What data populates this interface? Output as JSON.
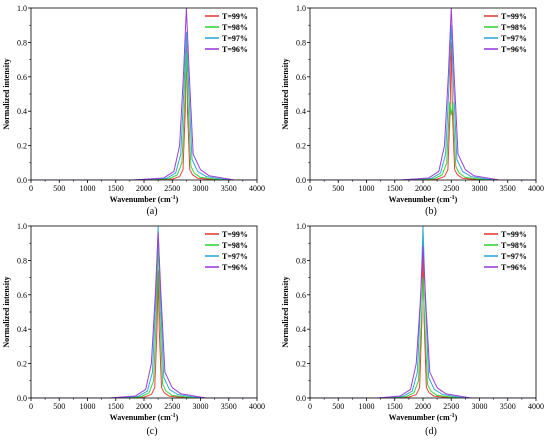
{
  "chart_data": [
    {
      "type": "line",
      "panel_label": "(a)",
      "peak_x": 2750,
      "xlabel": "Wavenumber (cm",
      "xlabel_sup": "-1",
      "xlabel_tail": ")",
      "ylabel": "Normalized intensity",
      "xlim": [
        0,
        4000
      ],
      "ylim": [
        0,
        1.0
      ],
      "xticks": [
        0,
        500,
        1000,
        1500,
        2000,
        2500,
        3000,
        3500,
        4000
      ],
      "yticks": [
        "0.0",
        "0.2",
        "0.4",
        "0.6",
        "0.8",
        "1.0"
      ],
      "legend_position": "top-right",
      "grid": false,
      "series": [
        {
          "name": "T=99%",
          "color": "#e8403a",
          "x": [
            0,
            2000,
            2500,
            2630,
            2690,
            2730,
            2750,
            2770,
            2810,
            2860,
            2950,
            3300,
            4000
          ],
          "y": [
            0,
            0,
            0.005,
            0.02,
            0.06,
            0.4,
            0.78,
            0.4,
            0.06,
            0.03,
            0.01,
            0,
            0
          ]
        },
        {
          "name": "T=98%",
          "color": "#3cd43c",
          "x": [
            0,
            2000,
            2450,
            2590,
            2670,
            2720,
            2750,
            2780,
            2830,
            2890,
            3000,
            3400,
            4000
          ],
          "y": [
            0,
            0,
            0.008,
            0.03,
            0.1,
            0.45,
            0.74,
            0.45,
            0.08,
            0.04,
            0.015,
            0,
            0
          ]
        },
        {
          "name": "T=97%",
          "color": "#32a8d8",
          "x": [
            0,
            1800,
            2400,
            2560,
            2650,
            2710,
            2750,
            2790,
            2850,
            2950,
            3100,
            3500,
            4000
          ],
          "y": [
            0,
            0,
            0.01,
            0.04,
            0.15,
            0.55,
            0.86,
            0.55,
            0.12,
            0.05,
            0.02,
            0,
            0
          ]
        },
        {
          "name": "T=96%",
          "color": "#9b3fd8",
          "x": [
            0,
            1800,
            2350,
            2530,
            2630,
            2700,
            2750,
            2800,
            2870,
            3000,
            3150,
            3600,
            4000
          ],
          "y": [
            0,
            0,
            0.012,
            0.05,
            0.2,
            0.62,
            1.0,
            0.62,
            0.15,
            0.06,
            0.025,
            0,
            0
          ]
        }
      ]
    },
    {
      "type": "line",
      "panel_label": "(b)",
      "peak_x": 2500,
      "xlabel": "Wavenumber (cm",
      "xlabel_sup": "-1",
      "xlabel_tail": ")",
      "ylabel": "Normalized intensity",
      "xlim": [
        0,
        4000
      ],
      "ylim": [
        0,
        1.0
      ],
      "xticks": [
        0,
        500,
        1000,
        1500,
        2000,
        2500,
        3000,
        3500,
        4000
      ],
      "yticks": [
        "0.0",
        "0.2",
        "0.4",
        "0.6",
        "0.8",
        "1.0"
      ],
      "legend_position": "top-right",
      "grid": false,
      "series": [
        {
          "name": "T=99%",
          "color": "#e8403a",
          "x": [
            0,
            1800,
            2250,
            2380,
            2440,
            2480,
            2500,
            2520,
            2560,
            2610,
            2700,
            3050,
            4000
          ],
          "y": [
            0,
            0,
            0.005,
            0.02,
            0.06,
            0.4,
            0.8,
            0.4,
            0.06,
            0.03,
            0.01,
            0,
            0
          ]
        },
        {
          "name": "T=98%",
          "color": "#3cd43c",
          "x": [
            0,
            1800,
            2200,
            2340,
            2420,
            2470,
            2500,
            2530,
            2580,
            2640,
            2750,
            3150,
            4000
          ],
          "y": [
            0,
            0,
            0.008,
            0.03,
            0.1,
            0.45,
            0.38,
            0.45,
            0.08,
            0.04,
            0.015,
            0,
            0
          ]
        },
        {
          "name": "T=97%",
          "color": "#32a8d8",
          "x": [
            0,
            1600,
            2150,
            2310,
            2400,
            2460,
            2500,
            2540,
            2600,
            2700,
            2850,
            3250,
            4000
          ],
          "y": [
            0,
            0,
            0.01,
            0.04,
            0.15,
            0.55,
            0.9,
            0.55,
            0.12,
            0.05,
            0.02,
            0,
            0
          ]
        },
        {
          "name": "T=96%",
          "color": "#9b3fd8",
          "x": [
            0,
            1600,
            2100,
            2280,
            2380,
            2450,
            2500,
            2550,
            2620,
            2750,
            2900,
            3350,
            4000
          ],
          "y": [
            0,
            0,
            0.012,
            0.05,
            0.2,
            0.62,
            1.0,
            0.62,
            0.15,
            0.06,
            0.025,
            0,
            0
          ]
        }
      ]
    },
    {
      "type": "line",
      "panel_label": "(c)",
      "peak_x": 2250,
      "xlabel": "Wavenumber (cm",
      "xlabel_sup": "-1",
      "xlabel_tail": ")",
      "ylabel": "Normalized intensity",
      "xlim": [
        0,
        4000
      ],
      "ylim": [
        0,
        1.0
      ],
      "xticks": [
        0,
        500,
        1000,
        1500,
        2000,
        2500,
        3000,
        3500,
        4000
      ],
      "yticks": [
        "0.0",
        "0.2",
        "0.4",
        "0.6",
        "0.8",
        "1.0"
      ],
      "legend_position": "top-right",
      "grid": false,
      "series": [
        {
          "name": "T=99%",
          "color": "#e8403a",
          "x": [
            0,
            1600,
            2000,
            2130,
            2190,
            2230,
            2250,
            2270,
            2310,
            2360,
            2450,
            2800,
            4000
          ],
          "y": [
            0,
            0,
            0.005,
            0.02,
            0.06,
            0.4,
            0.74,
            0.4,
            0.06,
            0.03,
            0.01,
            0,
            0
          ]
        },
        {
          "name": "T=98%",
          "color": "#3cd43c",
          "x": [
            0,
            1600,
            1950,
            2090,
            2170,
            2220,
            2250,
            2280,
            2330,
            2390,
            2500,
            2900,
            4000
          ],
          "y": [
            0,
            0,
            0.008,
            0.03,
            0.1,
            0.5,
            0.93,
            0.5,
            0.08,
            0.04,
            0.015,
            0,
            0
          ]
        },
        {
          "name": "T=97%",
          "color": "#32a8d8",
          "x": [
            0,
            1400,
            1900,
            2060,
            2150,
            2210,
            2250,
            2290,
            2350,
            2450,
            2600,
            3000,
            4000
          ],
          "y": [
            0,
            0,
            0.01,
            0.04,
            0.15,
            0.58,
            1.0,
            0.58,
            0.12,
            0.05,
            0.02,
            0,
            0
          ]
        },
        {
          "name": "T=96%",
          "color": "#9b3fd8",
          "x": [
            0,
            1400,
            1850,
            2030,
            2130,
            2200,
            2250,
            2300,
            2370,
            2500,
            2650,
            3100,
            4000
          ],
          "y": [
            0,
            0,
            0.012,
            0.05,
            0.2,
            0.6,
            0.96,
            0.6,
            0.15,
            0.06,
            0.025,
            0,
            0
          ]
        }
      ]
    },
    {
      "type": "line",
      "panel_label": "(d)",
      "peak_x": 2000,
      "xlabel": "Wavenumber (cm",
      "xlabel_sup": "-1",
      "xlabel_tail": ")",
      "ylabel": "Normalized intensity",
      "xlim": [
        0,
        4000
      ],
      "ylim": [
        0,
        1.0
      ],
      "xticks": [
        0,
        500,
        1000,
        1500,
        2000,
        2500,
        3000,
        3500,
        4000
      ],
      "yticks": [
        "0.0",
        "0.2",
        "0.4",
        "0.6",
        "0.8",
        "1.0"
      ],
      "legend_position": "top-right",
      "grid": false,
      "series": [
        {
          "name": "T=99%",
          "color": "#e8403a",
          "x": [
            0,
            1400,
            1750,
            1880,
            1940,
            1980,
            2000,
            2020,
            2060,
            2110,
            2200,
            2550,
            4000
          ],
          "y": [
            0,
            0,
            0.005,
            0.02,
            0.06,
            0.45,
            0.9,
            0.45,
            0.06,
            0.03,
            0.01,
            0,
            0
          ]
        },
        {
          "name": "T=98%",
          "color": "#3cd43c",
          "x": [
            0,
            1400,
            1700,
            1840,
            1920,
            1970,
            2000,
            2030,
            2080,
            2140,
            2250,
            2650,
            4000
          ],
          "y": [
            0,
            0,
            0.008,
            0.03,
            0.1,
            0.45,
            0.7,
            0.45,
            0.08,
            0.04,
            0.015,
            0,
            0
          ]
        },
        {
          "name": "T=97%",
          "color": "#32a8d8",
          "x": [
            0,
            1200,
            1650,
            1810,
            1900,
            1960,
            2000,
            2040,
            2100,
            2200,
            2350,
            2750,
            4000
          ],
          "y": [
            0,
            0,
            0.01,
            0.04,
            0.15,
            0.58,
            1.0,
            0.58,
            0.12,
            0.05,
            0.02,
            0,
            0
          ]
        },
        {
          "name": "T=96%",
          "color": "#9b3fd8",
          "x": [
            0,
            1200,
            1600,
            1780,
            1880,
            1950,
            2000,
            2050,
            2120,
            2250,
            2400,
            2850,
            4000
          ],
          "y": [
            0,
            0,
            0.012,
            0.05,
            0.2,
            0.55,
            0.88,
            0.55,
            0.15,
            0.06,
            0.025,
            0,
            0
          ]
        }
      ]
    }
  ]
}
